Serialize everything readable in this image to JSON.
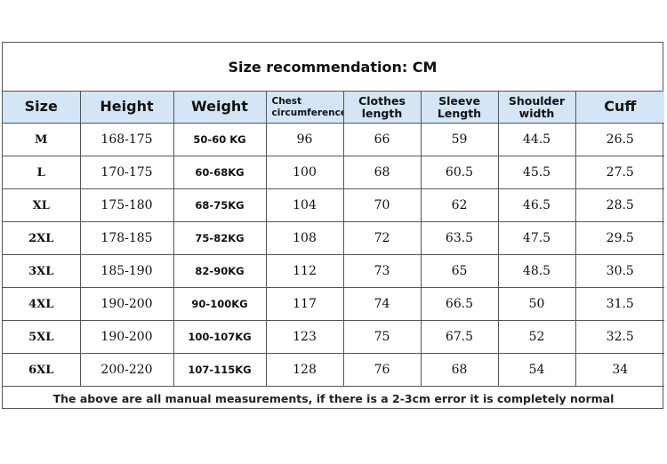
{
  "title": "Size recommendation: CM",
  "headers": [
    "Size",
    "Height",
    "Weight",
    "Chest circumference",
    "Clothes length",
    "Sleeve Length",
    "Shoulder width",
    "Cuff"
  ],
  "rows": [
    [
      "M",
      "168-175",
      "50-60 KG",
      "96",
      "66",
      "59",
      "44.5",
      "26.5"
    ],
    [
      "L",
      "170-175",
      "60-68KG",
      "100",
      "68",
      "60.5",
      "45.5",
      "27.5"
    ],
    [
      "XL",
      "175-180",
      "68-75KG",
      "104",
      "70",
      "62",
      "46.5",
      "28.5"
    ],
    [
      "2XL",
      "178-185",
      "75-82KG",
      "108",
      "72",
      "63.5",
      "47.5",
      "29.5"
    ],
    [
      "3XL",
      "185-190",
      "82-90KG",
      "112",
      "73",
      "65",
      "48.5",
      "30.5"
    ],
    [
      "4XL",
      "190-200",
      "90-100KG",
      "117",
      "74",
      "66.5",
      "50",
      "31.5"
    ],
    [
      "5XL",
      "190-200",
      "100-107KG",
      "123",
      "75",
      "67.5",
      "52",
      "32.5"
    ],
    [
      "6XL",
      "200-220",
      "107-115KG",
      "128",
      "76",
      "68",
      "54",
      "34"
    ]
  ],
  "note": "The above are all manual measurements, if there is a 2-3cm error it is completely normal"
}
